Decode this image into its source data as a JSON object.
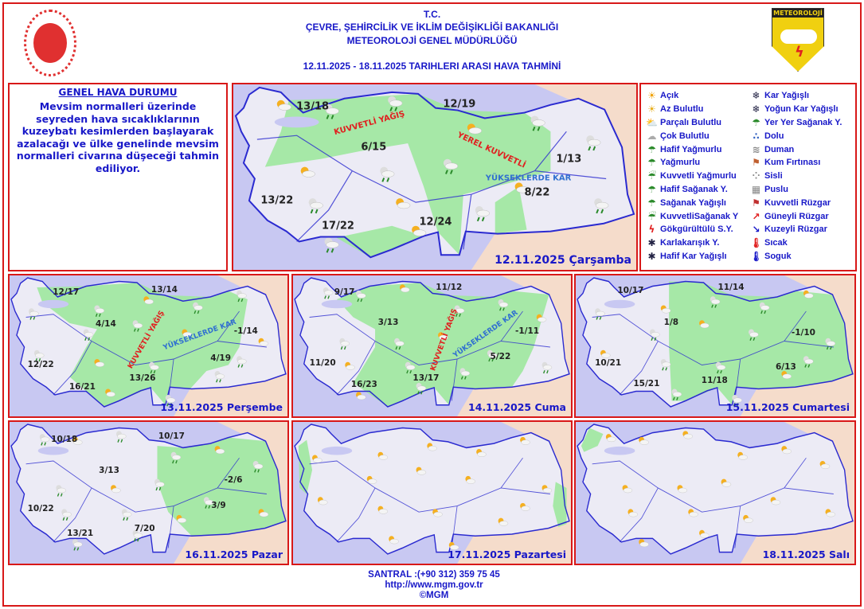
{
  "header": {
    "line1": "T.C.",
    "line2": "ÇEVRE, ŞEHİRCİLİK VE İKLİM DEĞİŞİKLİĞİ BAKANLIĞI",
    "line3": "METEOROLOJİ  GENEL  MÜDÜRLÜĞÜ",
    "line4": "12.11.2025  -  18.11.2025   TARIHLERI  ARASI  HAVA  TAHMİNİ",
    "logo_right_text": "METEOROLOJİ"
  },
  "general": {
    "title": "GENEL HAVA DURUMU",
    "text": "Mevsim normalleri üzerinde seyreden hava sıcaklıklarının kuzeybatı kesimlerden başlayarak azalacağı ve ülke genelinde mevsim normalleri civarına düşeceği tahmin ediliyor."
  },
  "legend": [
    {
      "label": "Açık",
      "icon": "sun-icon"
    },
    {
      "label": "Az Bulutlu",
      "icon": "mostly-sunny-icon"
    },
    {
      "label": "Parçalı Bulutlu",
      "icon": "partly-cloudy-icon"
    },
    {
      "label": "Çok Bulutlu",
      "icon": "cloudy-icon"
    },
    {
      "label": "Hafif Yağmurlu",
      "icon": "light-rain-icon"
    },
    {
      "label": "Yağmurlu",
      "icon": "rain-icon"
    },
    {
      "label": "Kuvvetli Yağmurlu",
      "icon": "heavy-rain-icon"
    },
    {
      "label": "Hafif Sağanak Y.",
      "icon": "light-shower-icon"
    },
    {
      "label": "Sağanak Yağışlı",
      "icon": "shower-icon"
    },
    {
      "label": "KuvvetliSağanak Y",
      "icon": "heavy-shower-icon"
    },
    {
      "label": "Gökgürültülü S.Y.",
      "icon": "thunderstorm-icon"
    },
    {
      "label": "Karlakarışık Y.",
      "icon": "sleet-icon"
    },
    {
      "label": "Hafif Kar Yağışlı",
      "icon": "light-snow-icon"
    },
    {
      "label": "Kar Yağışlı",
      "icon": "snow-icon"
    },
    {
      "label": "Yoğun Kar Yağışlı",
      "icon": "heavy-snow-icon"
    },
    {
      "label": "Yer Yer Sağanak Y.",
      "icon": "scattered-shower-icon"
    },
    {
      "label": "Dolu",
      "icon": "hail-icon"
    },
    {
      "label": "Duman",
      "icon": "smoke-icon"
    },
    {
      "label": "Kum Fırtınası",
      "icon": "sandstorm-icon"
    },
    {
      "label": "Sisli",
      "icon": "fog-icon"
    },
    {
      "label": "Puslu",
      "icon": "haze-icon"
    },
    {
      "label": "Kuvvetli Rüzgar",
      "icon": "strong-wind-icon"
    },
    {
      "label": "Güneyli Rüzgar",
      "icon": "south-wind-arrow-icon"
    },
    {
      "label": "Kuzeyli Rüzgar",
      "icon": "north-wind-arrow-icon"
    },
    {
      "label": "Sıcak",
      "icon": "hot-thermometer-icon"
    },
    {
      "label": "Soguk",
      "icon": "cold-thermometer-icon"
    }
  ],
  "maps": [
    {
      "date": "12.11.2025 Çarşamba",
      "temps": [
        "13/18",
        "12/19",
        "6/15",
        "1/13",
        "13/22",
        "8/22",
        "17/22",
        "12/24"
      ],
      "annotations": [
        "KUVVETLİ YAĞIŞ",
        "YEREL KUVVETLİ",
        "YÜKSEKLERDE KAR"
      ]
    },
    {
      "date": "13.11.2025 Perşembe",
      "temps": [
        "12/17",
        "13/14",
        "4/14",
        "-1/14",
        "12/22",
        "4/19",
        "16/21",
        "13/26"
      ],
      "annotations": [
        "KUVVETLİ YAĞIŞ",
        "YÜKSEKLERDE KAR"
      ]
    },
    {
      "date": "14.11.2025 Cuma",
      "temps": [
        "9/17",
        "11/12",
        "3/13",
        "-1/11",
        "11/20",
        "5/22",
        "16/23",
        "13/17"
      ],
      "annotations": [
        "KUVVETLİ YAĞIŞ",
        "YÜKSEKLERDE KAR"
      ]
    },
    {
      "date": "15.11.2025 Cumartesi",
      "temps": [
        "10/17",
        "11/14",
        "1/8",
        "-1/10",
        "10/21",
        "6/13",
        "15/21",
        "11/18"
      ],
      "annotations": []
    },
    {
      "date": "16.11.2025 Pazar",
      "temps": [
        "10/18",
        "10/17",
        "3/13",
        "-2/6",
        "10/22",
        "3/9",
        "13/21",
        "7/20"
      ],
      "annotations": []
    },
    {
      "date": "17.11.2025 Pazartesi",
      "temps": [],
      "annotations": []
    },
    {
      "date": "18.11.2025 Salı",
      "temps": [],
      "annotations": []
    }
  ],
  "colors": {
    "text": "#1818c8",
    "frame": "#d81818",
    "sea": "#c8c8f2",
    "land": "#ecebf5",
    "neighbor": "#f5dccb",
    "precip_area": "#9ee89e",
    "heavy_area": "#44e044",
    "border": "#2a2ad0"
  },
  "footer": {
    "phone": "SANTRAL :(+90 312) 359 75 45",
    "url": "http://www.mgm.gov.tr",
    "copyright": "©MGM"
  }
}
